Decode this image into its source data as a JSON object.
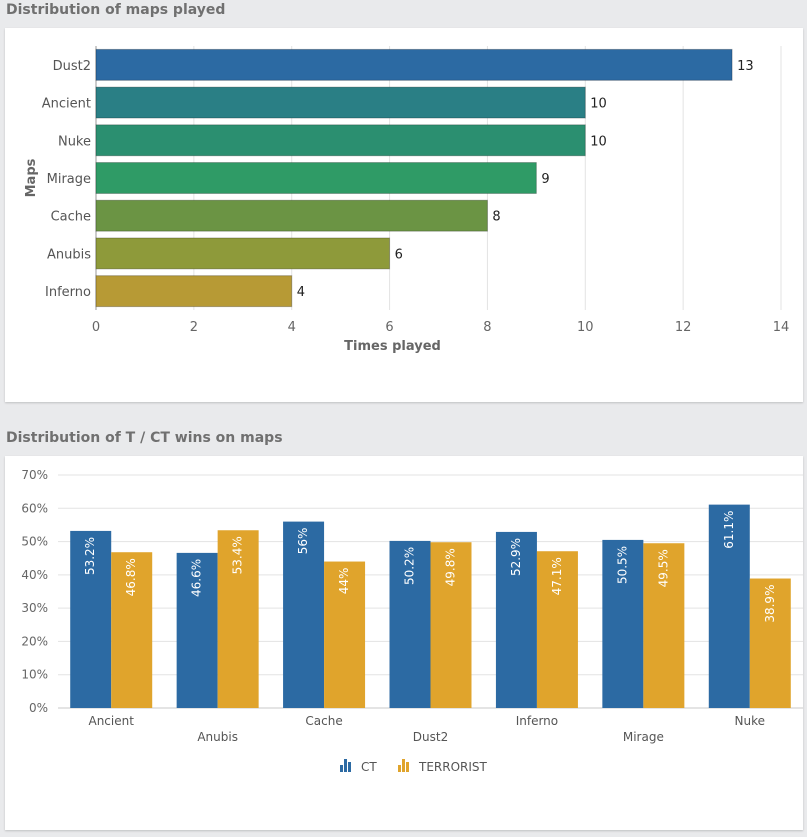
{
  "sections": [
    {
      "title": "Distribution of maps played"
    },
    {
      "title": "Distribution of T / CT wins on maps"
    }
  ],
  "charts": {
    "maps_played": {
      "type": "bar",
      "orientation": "horizontal",
      "categories": [
        "Dust2",
        "Ancient",
        "Nuke",
        "Mirage",
        "Cache",
        "Anubis",
        "Inferno"
      ],
      "values": [
        13,
        10,
        10,
        9,
        8,
        6,
        4
      ],
      "value_labels": [
        "13",
        "10",
        "10",
        "9",
        "8",
        "6",
        "4"
      ],
      "colors": [
        "#2c6aa3",
        "#2a7f85",
        "#2b8f70",
        "#2f9b66",
        "#6b9444",
        "#8e9a3a",
        "#b79a35"
      ],
      "xlabel": "Times played",
      "ylabel": "Maps",
      "xlim": [
        0,
        14
      ],
      "xticks": [
        "0",
        "2",
        "4",
        "6",
        "8",
        "10",
        "12",
        "14"
      ],
      "grid": true
    },
    "wins": {
      "type": "bar",
      "orientation": "vertical",
      "categories": [
        "Ancient",
        "Anubis",
        "Cache",
        "Dust2",
        "Inferno",
        "Mirage",
        "Nuke"
      ],
      "series": [
        {
          "name": "CT",
          "values": [
            53.2,
            46.6,
            56,
            50.2,
            52.9,
            50.5,
            61.1
          ],
          "labels": [
            "53.2%",
            "46.6%",
            "56%",
            "50.2%",
            "52.9%",
            "50.5%",
            "61.1%"
          ],
          "color": "#2c6aa3"
        },
        {
          "name": "TERRORIST",
          "values": [
            46.8,
            53.4,
            44,
            49.8,
            47.1,
            49.5,
            38.9
          ],
          "labels": [
            "46.8%",
            "53.4%",
            "44%",
            "49.8%",
            "47.1%",
            "49.5%",
            "38.9%"
          ],
          "color": "#e0a42c"
        }
      ],
      "ylim": [
        0,
        70
      ],
      "yticks": [
        "0%",
        "10%",
        "20%",
        "30%",
        "40%",
        "50%",
        "60%",
        "70%"
      ],
      "legend": "bottom-center",
      "grid": true
    }
  },
  "chart_data": [
    {
      "type": "bar",
      "orientation": "horizontal",
      "title": "Distribution of maps played",
      "categories": [
        "Dust2",
        "Ancient",
        "Nuke",
        "Mirage",
        "Cache",
        "Anubis",
        "Inferno"
      ],
      "values": [
        13,
        10,
        10,
        9,
        8,
        6,
        4
      ],
      "xlabel": "Times played",
      "ylabel": "Maps",
      "xlim": [
        0,
        14
      ],
      "grid": true
    },
    {
      "type": "bar",
      "title": "Distribution of T / CT wins on maps",
      "categories": [
        "Ancient",
        "Anubis",
        "Cache",
        "Dust2",
        "Inferno",
        "Mirage",
        "Nuke"
      ],
      "series": [
        {
          "name": "CT",
          "values": [
            53.2,
            46.6,
            56,
            50.2,
            52.9,
            50.5,
            61.1
          ]
        },
        {
          "name": "TERRORIST",
          "values": [
            46.8,
            53.4,
            44,
            49.8,
            47.1,
            49.5,
            38.9
          ]
        }
      ],
      "ylim": [
        0,
        70
      ],
      "legend": "bottom-center",
      "grid": true
    }
  ]
}
